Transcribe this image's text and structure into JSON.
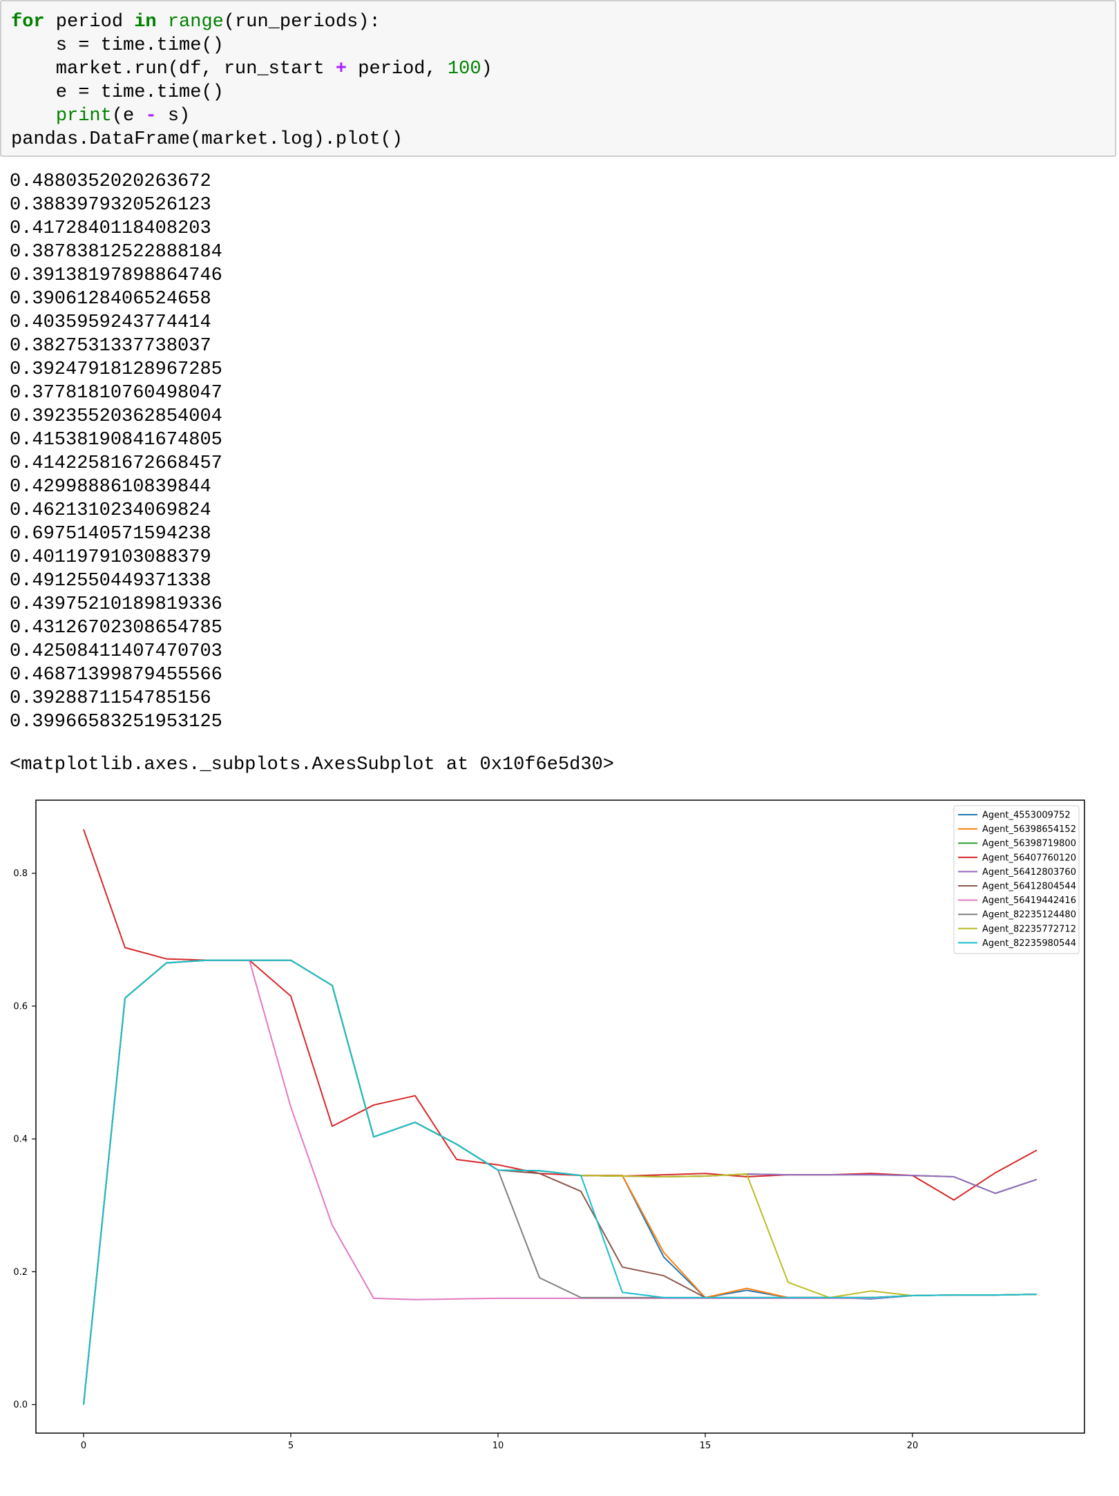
{
  "code_lines": [
    [
      {
        "t": "for",
        "c": "kw"
      },
      {
        "t": " period "
      },
      {
        "t": "in",
        "c": "kw"
      },
      {
        "t": " "
      },
      {
        "t": "range",
        "c": "bi"
      },
      {
        "t": "(run_periods):"
      }
    ],
    [
      {
        "t": "    s = time.time()"
      }
    ],
    [
      {
        "t": "    market.run(df, run_start "
      },
      {
        "t": "+",
        "c": "op"
      },
      {
        "t": " period, "
      },
      {
        "t": "100",
        "c": "num"
      },
      {
        "t": ")"
      }
    ],
    [
      {
        "t": "    e = time.time()"
      }
    ],
    [
      {
        "t": "    "
      },
      {
        "t": "print",
        "c": "bi"
      },
      {
        "t": "(e "
      },
      {
        "t": "-",
        "c": "op"
      },
      {
        "t": " s)"
      }
    ],
    [
      {
        "t": "pandas.DataFrame(market.log).plot()"
      }
    ]
  ],
  "output_lines": [
    "0.4880352020263672",
    "0.3883979320526123",
    "0.4172840118408203",
    "0.38783812522888184",
    "0.39138197898864746",
    "0.3906128406524658",
    "0.4035959243774414",
    "0.3827531337738037",
    "0.39247918128967285",
    "0.37781810760498047",
    "0.39235520362854004",
    "0.41538190841674805",
    "0.41422581672668457",
    "0.4299888610839844",
    "0.4621310234069824",
    "0.6975140571594238",
    "0.4011979103088379",
    "0.4912550449371338",
    "0.43975210189819336",
    "0.43126702308654785",
    "0.42508411407470703",
    "0.46871399879455566",
    "0.3928871154785156",
    "0.39966583251953125"
  ],
  "repr_text": "<matplotlib.axes._subplots.AxesSubplot at 0x10f6e5d30>",
  "chart_data": {
    "type": "line",
    "xlim": [
      -1.15,
      24.15
    ],
    "ylim": [
      -0.043,
      0.91
    ],
    "xticks": [
      0,
      5,
      10,
      15,
      20
    ],
    "yticks": [
      0.0,
      0.2,
      0.4,
      0.6,
      0.8
    ],
    "xtick_labels": [
      "0",
      "5",
      "10",
      "15",
      "20"
    ],
    "ytick_labels": [
      "0.0",
      "0.2",
      "0.4",
      "0.6",
      "0.8"
    ],
    "legend_position": "top-right",
    "x": [
      0,
      1,
      2,
      3,
      4,
      5,
      6,
      7,
      8,
      9,
      10,
      11,
      12,
      13,
      14,
      15,
      16,
      17,
      18,
      19,
      20,
      21,
      22,
      23
    ],
    "series": [
      {
        "name": "Agent_4553009752",
        "color": "#1f77b4",
        "values": [
          0,
          0.612,
          0.665,
          0.669,
          0.669,
          0.669,
          0.631,
          0.403,
          0.425,
          0.392,
          0.353,
          0.352,
          0.345,
          0.345,
          0.222,
          0.161,
          0.172,
          0.161,
          0.161,
          0.159,
          0.164,
          0.165,
          0.165,
          0.166
        ]
      },
      {
        "name": "Agent_56398654152",
        "color": "#ff7f0e",
        "values": [
          0,
          0.612,
          0.665,
          0.669,
          0.669,
          0.669,
          0.631,
          0.403,
          0.425,
          0.392,
          0.353,
          0.352,
          0.345,
          0.345,
          0.229,
          0.161,
          0.175,
          0.161,
          0.161,
          0.161,
          0.164,
          0.165,
          0.165,
          0.166
        ]
      },
      {
        "name": "Agent_56398719800",
        "color": "#2ca02c",
        "values": [
          0,
          0.612,
          0.665,
          0.669,
          0.669,
          0.669,
          0.631,
          0.403,
          0.425,
          0.392,
          0.353,
          0.352,
          0.345,
          0.344,
          0.343,
          0.344,
          0.347,
          0.346,
          0.346,
          0.346,
          0.345,
          0.343,
          0.318,
          0.339
        ]
      },
      {
        "name": "Agent_56407760120",
        "color": "#d62728",
        "values": [
          0.866,
          0.688,
          0.671,
          0.669,
          0.669,
          0.615,
          0.419,
          0.451,
          0.465,
          0.369,
          0.361,
          0.348,
          0.345,
          0.344,
          0.346,
          0.348,
          0.343,
          0.346,
          0.346,
          0.348,
          0.345,
          0.308,
          0.349,
          0.383
        ]
      },
      {
        "name": "Agent_56412803760",
        "color": "#9467bd",
        "values": [
          0,
          0.612,
          0.665,
          0.669,
          0.669,
          0.669,
          0.631,
          0.403,
          0.425,
          0.392,
          0.353,
          0.352,
          0.345,
          0.344,
          0.343,
          0.344,
          0.347,
          0.346,
          0.346,
          0.346,
          0.345,
          0.343,
          0.318,
          0.339
        ]
      },
      {
        "name": "Agent_56412804544",
        "color": "#8c564b",
        "values": [
          0,
          0.612,
          0.665,
          0.669,
          0.669,
          0.669,
          0.631,
          0.403,
          0.425,
          0.392,
          0.353,
          0.348,
          0.321,
          0.207,
          0.194,
          0.161,
          0.161,
          0.161,
          0.161,
          0.161,
          0.164,
          0.165,
          0.165,
          0.166
        ]
      },
      {
        "name": "Agent_56419442416",
        "color": "#e377c2",
        "values": [
          0,
          0.612,
          0.665,
          0.669,
          0.669,
          0.448,
          0.27,
          0.16,
          0.158,
          0.159,
          0.16,
          0.16,
          0.16,
          0.16,
          0.16,
          0.16,
          0.16,
          0.16,
          0.16,
          0.16,
          0.164,
          0.165,
          0.165,
          0.166
        ]
      },
      {
        "name": "Agent_82235124480",
        "color": "#7f7f7f",
        "values": [
          0,
          0.612,
          0.665,
          0.669,
          0.669,
          0.669,
          0.631,
          0.403,
          0.425,
          0.392,
          0.353,
          0.191,
          0.161,
          0.161,
          0.161,
          0.161,
          0.161,
          0.161,
          0.161,
          0.161,
          0.164,
          0.165,
          0.165,
          0.166
        ]
      },
      {
        "name": "Agent_82235772712",
        "color": "#bcbd22",
        "values": [
          0,
          0.612,
          0.665,
          0.669,
          0.669,
          0.669,
          0.631,
          0.403,
          0.425,
          0.392,
          0.353,
          0.352,
          0.345,
          0.344,
          0.343,
          0.344,
          0.347,
          0.184,
          0.161,
          0.171,
          0.164,
          0.165,
          0.165,
          0.166
        ]
      },
      {
        "name": "Agent_82235980544",
        "color": "#17becf",
        "values": [
          0,
          0.612,
          0.665,
          0.669,
          0.669,
          0.669,
          0.631,
          0.403,
          0.425,
          0.392,
          0.353,
          0.352,
          0.345,
          0.169,
          0.161,
          0.161,
          0.161,
          0.161,
          0.161,
          0.161,
          0.164,
          0.165,
          0.165,
          0.166
        ]
      }
    ]
  }
}
